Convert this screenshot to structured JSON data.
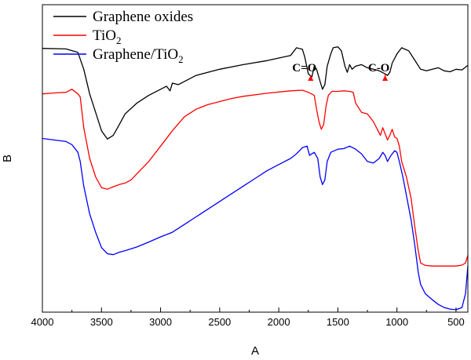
{
  "chart_data": {
    "type": "line",
    "title": "",
    "xlabel": "A",
    "ylabel": "B",
    "xlim": [
      4000,
      400
    ],
    "x_reversed": true,
    "ylim": [
      0,
      100
    ],
    "x_ticks": [
      4000,
      3500,
      3000,
      2500,
      2000,
      1500,
      1000,
      500
    ],
    "x_tick_labels": [
      "4000",
      "3500",
      "3000",
      "2500",
      "2000",
      "1500",
      "1000",
      "500"
    ],
    "y_tick_labels_shown": false,
    "grid": false,
    "legend_position": "top-left",
    "series": [
      {
        "name": "Graphene oxides",
        "name_main": "Graphene oxides",
        "name_sub": "",
        "color": "#000000",
        "points": [
          [
            4000,
            85.8
          ],
          [
            3800,
            85.6
          ],
          [
            3700,
            84.5
          ],
          [
            3650,
            79
          ],
          [
            3600,
            71
          ],
          [
            3550,
            65
          ],
          [
            3500,
            59
          ],
          [
            3450,
            56.3
          ],
          [
            3400,
            57.5
          ],
          [
            3350,
            61
          ],
          [
            3300,
            64.5
          ],
          [
            3200,
            68
          ],
          [
            3100,
            70.5
          ],
          [
            3000,
            72.5
          ],
          [
            2950,
            73.5
          ],
          [
            2920,
            72
          ],
          [
            2900,
            74.5
          ],
          [
            2850,
            74
          ],
          [
            2700,
            77
          ],
          [
            2500,
            79
          ],
          [
            2300,
            80.5
          ],
          [
            2100,
            81.8
          ],
          [
            1900,
            83.5
          ],
          [
            1850,
            86
          ],
          [
            1800,
            85.5
          ],
          [
            1780,
            83
          ],
          [
            1750,
            77.5
          ],
          [
            1720,
            76.5
          ],
          [
            1700,
            80
          ],
          [
            1680,
            79
          ],
          [
            1650,
            75
          ],
          [
            1630,
            72.5
          ],
          [
            1610,
            74
          ],
          [
            1590,
            80
          ],
          [
            1560,
            84
          ],
          [
            1540,
            86
          ],
          [
            1500,
            86.3
          ],
          [
            1470,
            85
          ],
          [
            1440,
            80
          ],
          [
            1420,
            78
          ],
          [
            1400,
            80.5
          ],
          [
            1380,
            79
          ],
          [
            1350,
            80
          ],
          [
            1300,
            80.5
          ],
          [
            1250,
            79.5
          ],
          [
            1200,
            79
          ],
          [
            1150,
            78.5
          ],
          [
            1100,
            77.5
          ],
          [
            1080,
            77
          ],
          [
            1060,
            78
          ],
          [
            1040,
            81
          ],
          [
            1000,
            84
          ],
          [
            960,
            86
          ],
          [
            900,
            85
          ],
          [
            850,
            82
          ],
          [
            800,
            79
          ],
          [
            750,
            78.5
          ],
          [
            700,
            79
          ],
          [
            650,
            79.5
          ],
          [
            600,
            78.5
          ],
          [
            550,
            78.2
          ],
          [
            500,
            79
          ],
          [
            450,
            78.8
          ],
          [
            400,
            80.3
          ]
        ]
      },
      {
        "name": "TiO2",
        "name_main": "TiO",
        "name_sub": "2",
        "color": "#ff0000",
        "points": [
          [
            4000,
            71
          ],
          [
            3900,
            71.3
          ],
          [
            3800,
            71.5
          ],
          [
            3750,
            72.5
          ],
          [
            3700,
            71
          ],
          [
            3680,
            70
          ],
          [
            3650,
            60
          ],
          [
            3600,
            50
          ],
          [
            3550,
            44
          ],
          [
            3500,
            40.5
          ],
          [
            3450,
            40
          ],
          [
            3400,
            40.8
          ],
          [
            3350,
            41.5
          ],
          [
            3300,
            42
          ],
          [
            3250,
            43
          ],
          [
            3200,
            45
          ],
          [
            3100,
            49
          ],
          [
            3000,
            54
          ],
          [
            2900,
            59
          ],
          [
            2800,
            63.5
          ],
          [
            2700,
            66
          ],
          [
            2600,
            67.5
          ],
          [
            2500,
            68.5
          ],
          [
            2400,
            69.5
          ],
          [
            2300,
            70.2
          ],
          [
            2100,
            71.2
          ],
          [
            1900,
            72
          ],
          [
            1800,
            72.2
          ],
          [
            1750,
            71.5
          ],
          [
            1700,
            70.5
          ],
          [
            1680,
            66
          ],
          [
            1660,
            62
          ],
          [
            1640,
            59.5
          ],
          [
            1620,
            61
          ],
          [
            1600,
            67
          ],
          [
            1580,
            70.5
          ],
          [
            1550,
            71.8
          ],
          [
            1500,
            71.8
          ],
          [
            1450,
            72
          ],
          [
            1400,
            71.8
          ],
          [
            1370,
            71.5
          ],
          [
            1350,
            68
          ],
          [
            1300,
            65
          ],
          [
            1250,
            64.5
          ],
          [
            1200,
            62
          ],
          [
            1160,
            59
          ],
          [
            1140,
            57.5
          ],
          [
            1120,
            60
          ],
          [
            1100,
            58
          ],
          [
            1080,
            56
          ],
          [
            1060,
            57.5
          ],
          [
            1040,
            59.5
          ],
          [
            1020,
            57
          ],
          [
            1000,
            56.5
          ],
          [
            980,
            54
          ],
          [
            960,
            49
          ],
          [
            920,
            44
          ],
          [
            880,
            37
          ],
          [
            850,
            28
          ],
          [
            820,
            20
          ],
          [
            800,
            16
          ],
          [
            760,
            15.2
          ],
          [
            700,
            15
          ],
          [
            600,
            15
          ],
          [
            500,
            15
          ],
          [
            450,
            15.3
          ],
          [
            420,
            16
          ],
          [
            400,
            18.5
          ]
        ]
      },
      {
        "name": "Graphene/TiO2",
        "name_main": "Graphene/TiO",
        "name_sub": "2",
        "color": "#0000ff",
        "points": [
          [
            4000,
            56.5
          ],
          [
            3900,
            56
          ],
          [
            3800,
            55.5
          ],
          [
            3750,
            54.5
          ],
          [
            3700,
            52
          ],
          [
            3680,
            49
          ],
          [
            3650,
            41
          ],
          [
            3600,
            32
          ],
          [
            3550,
            26
          ],
          [
            3500,
            21
          ],
          [
            3450,
            19
          ],
          [
            3400,
            18.7
          ],
          [
            3350,
            19.5
          ],
          [
            3300,
            20
          ],
          [
            3200,
            21.2
          ],
          [
            3100,
            22.8
          ],
          [
            3000,
            24.5
          ],
          [
            2900,
            26
          ],
          [
            2800,
            28.5
          ],
          [
            2700,
            31
          ],
          [
            2600,
            33.5
          ],
          [
            2500,
            36
          ],
          [
            2400,
            38.5
          ],
          [
            2300,
            41
          ],
          [
            2200,
            43.5
          ],
          [
            2100,
            46
          ],
          [
            2000,
            48
          ],
          [
            1900,
            50
          ],
          [
            1850,
            51.5
          ],
          [
            1800,
            53.5
          ],
          [
            1760,
            54
          ],
          [
            1740,
            51
          ],
          [
            1700,
            52
          ],
          [
            1670,
            50
          ],
          [
            1650,
            44
          ],
          [
            1630,
            41.5
          ],
          [
            1610,
            43
          ],
          [
            1590,
            49
          ],
          [
            1560,
            52
          ],
          [
            1500,
            53
          ],
          [
            1450,
            53.2
          ],
          [
            1400,
            54
          ],
          [
            1350,
            53
          ],
          [
            1300,
            51.5
          ],
          [
            1250,
            49
          ],
          [
            1200,
            48.5
          ],
          [
            1150,
            50
          ],
          [
            1120,
            52
          ],
          [
            1100,
            51
          ],
          [
            1080,
            49
          ],
          [
            1050,
            51
          ],
          [
            1020,
            52.5
          ],
          [
            1000,
            52
          ],
          [
            980,
            49
          ],
          [
            950,
            44
          ],
          [
            920,
            38
          ],
          [
            880,
            30
          ],
          [
            850,
            22
          ],
          [
            820,
            13
          ],
          [
            800,
            9
          ],
          [
            760,
            6
          ],
          [
            700,
            4
          ],
          [
            650,
            2.5
          ],
          [
            600,
            1.5
          ],
          [
            550,
            1
          ],
          [
            500,
            0.8
          ],
          [
            450,
            1.5
          ],
          [
            420,
            6
          ],
          [
            400,
            15
          ]
        ]
      }
    ],
    "annotations": [
      {
        "text": "C=O",
        "x": 1730,
        "arrow_to_y": 76.5
      },
      {
        "text": "C-O",
        "x": 1100,
        "arrow_to_y": 77.5
      }
    ],
    "annotation_color": "#ff0000"
  }
}
